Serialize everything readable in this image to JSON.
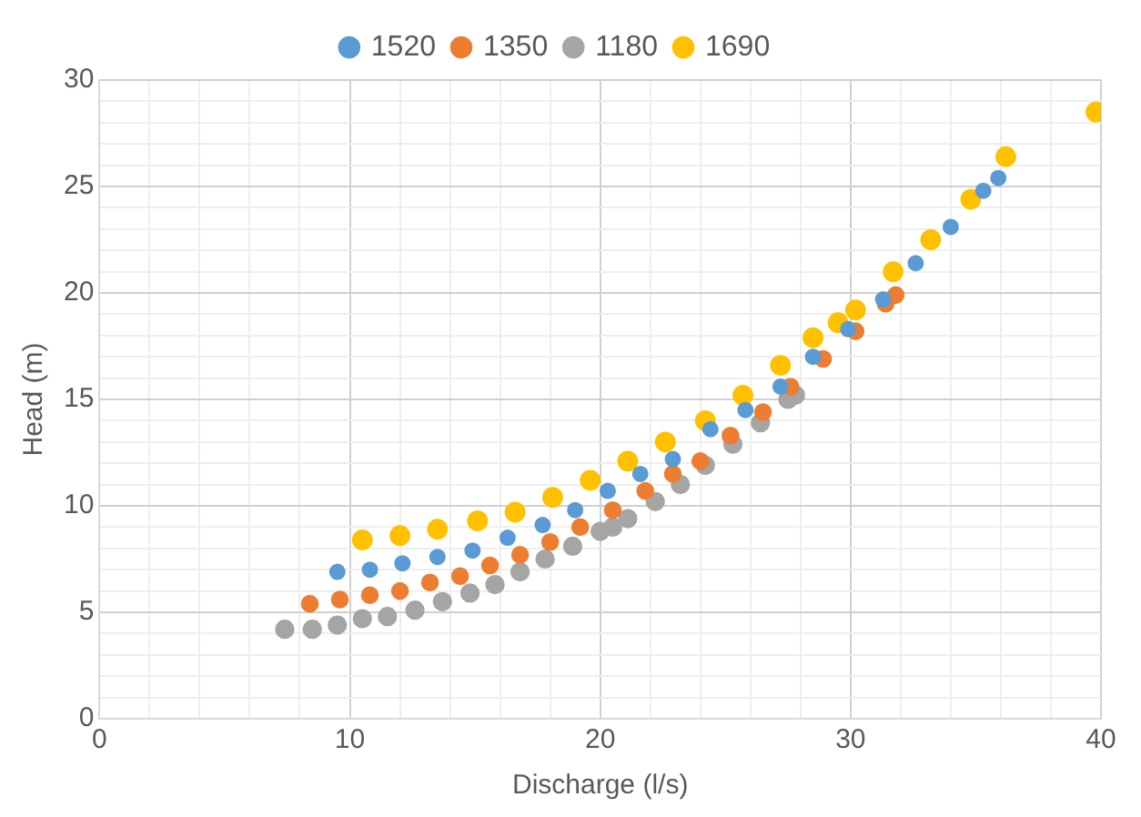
{
  "chart_data": {
    "type": "scatter",
    "xlabel": "Discharge (l/s)",
    "ylabel": "Head (m)",
    "legend": "top",
    "grid": true,
    "marker": "circle",
    "xlim": [
      0,
      40
    ],
    "ylim": [
      0,
      30
    ],
    "xticks": [
      0,
      {
        "value": 2,
        "label": null
      },
      {
        "value": 4,
        "label": null
      },
      {
        "value": 6,
        "label": null
      },
      {
        "value": 8,
        "label": null
      },
      10,
      {
        "value": 12,
        "label": null
      },
      {
        "value": 14,
        "label": null
      },
      {
        "value": 16,
        "label": null
      },
      {
        "value": 18,
        "label": null
      },
      20,
      {
        "value": 22,
        "label": null
      },
      {
        "value": 24,
        "label": null
      },
      {
        "value": 26,
        "label": null
      },
      {
        "value": 28,
        "label": null
      },
      30,
      {
        "value": 32,
        "label": null
      },
      {
        "value": 34,
        "label": null
      },
      {
        "value": 36,
        "label": null
      },
      {
        "value": 38,
        "label": null
      },
      40
    ],
    "yticks": [
      0,
      {
        "value": 1,
        "label": null
      },
      {
        "value": 2,
        "label": null
      },
      {
        "value": 3,
        "label": null
      },
      {
        "value": 4,
        "label": null
      },
      5,
      {
        "value": 6,
        "label": null
      },
      {
        "value": 7,
        "label": null
      },
      {
        "value": 8,
        "label": null
      },
      {
        "value": 9,
        "label": null
      },
      10,
      {
        "value": 11,
        "label": null
      },
      {
        "value": 12,
        "label": null
      },
      {
        "value": 13,
        "label": null
      },
      {
        "value": 14,
        "label": null
      },
      15,
      {
        "value": 16,
        "label": null
      },
      {
        "value": 17,
        "label": null
      },
      {
        "value": 18,
        "label": null
      },
      {
        "value": 19,
        "label": null
      },
      20,
      {
        "value": 21,
        "label": null
      },
      {
        "value": 22,
        "label": null
      },
      {
        "value": 23,
        "label": null
      },
      {
        "value": 24,
        "label": null
      },
      25,
      {
        "value": 26,
        "label": null
      },
      {
        "value": 27,
        "label": null
      },
      {
        "value": 28,
        "label": null
      },
      {
        "value": 29,
        "label": null
      },
      30
    ],
    "series": [
      {
        "name": "1520",
        "color": "#5b9bd5",
        "x": [
          9.5,
          10.8,
          12.1,
          13.5,
          14.9,
          16.3,
          17.7,
          19.0,
          20.3,
          21.6,
          22.9,
          24.4,
          25.8,
          27.2,
          28.5,
          29.9,
          31.3,
          32.6,
          34.0,
          35.3,
          35.9
        ],
        "values": [
          6.9,
          7.0,
          7.3,
          7.6,
          7.9,
          8.5,
          9.1,
          9.8,
          10.7,
          11.5,
          12.2,
          13.6,
          14.5,
          15.6,
          17.0,
          18.3,
          19.7,
          21.4,
          23.1,
          24.8,
          25.4
        ]
      },
      {
        "name": "1350",
        "color": "#ed7d31",
        "x": [
          8.4,
          9.6,
          10.8,
          12.0,
          13.2,
          14.4,
          15.6,
          16.8,
          18.0,
          19.2,
          20.5,
          21.8,
          22.9,
          24.0,
          25.2,
          26.5,
          27.6,
          28.9,
          30.2,
          31.4,
          31.8
        ],
        "values": [
          5.4,
          5.6,
          5.8,
          6.0,
          6.4,
          6.7,
          7.2,
          7.7,
          8.3,
          9.0,
          9.8,
          10.7,
          11.5,
          12.1,
          13.3,
          14.4,
          15.6,
          16.9,
          18.2,
          19.5,
          19.9
        ]
      },
      {
        "name": "1180",
        "color": "#a5a5a5",
        "x": [
          7.4,
          8.5,
          9.5,
          10.5,
          11.5,
          12.6,
          13.7,
          14.8,
          15.8,
          16.8,
          17.8,
          18.9,
          20.0,
          20.5,
          21.1,
          22.2,
          23.2,
          24.2,
          25.3,
          26.4,
          27.5,
          27.8
        ],
        "values": [
          4.2,
          4.2,
          4.4,
          4.7,
          4.8,
          5.1,
          5.5,
          5.9,
          6.3,
          6.9,
          7.5,
          8.1,
          8.8,
          9.0,
          9.4,
          10.2,
          11.0,
          11.9,
          12.9,
          13.9,
          15.0,
          15.2
        ]
      },
      {
        "name": "1690",
        "color": "#ffc000",
        "x": [
          10.5,
          12.0,
          13.5,
          15.1,
          16.6,
          18.1,
          19.6,
          21.1,
          22.6,
          24.2,
          25.7,
          27.2,
          28.5,
          29.5,
          30.2,
          31.7,
          33.2,
          34.8,
          36.2,
          39.8
        ],
        "values": [
          8.4,
          8.6,
          8.9,
          9.3,
          9.7,
          10.4,
          11.2,
          12.1,
          13.0,
          14.0,
          15.2,
          16.6,
          17.9,
          18.6,
          19.2,
          21.0,
          22.5,
          24.4,
          26.4,
          28.5
        ]
      }
    ]
  }
}
